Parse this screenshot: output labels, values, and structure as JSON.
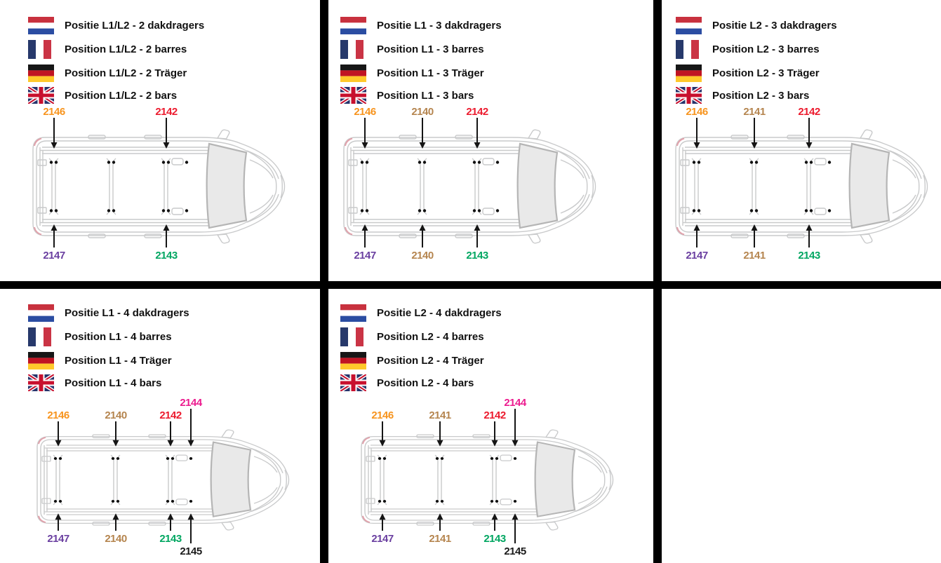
{
  "colors": {
    "orange": "#F7941E",
    "tan": "#B5854F",
    "red": "#EC1B2E",
    "magenta": "#EC1C8F",
    "purple": "#6A3FA0",
    "green": "#00A661",
    "dark": "#1A1A1A",
    "arrow": "#151515",
    "divider": "#000000",
    "van_outline": "#C9CACB",
    "windshield_fill": "#E9E9E9",
    "windshield_stroke": "#B5B5B5",
    "taillight_accent": "#E2A0AA"
  },
  "flags": {
    "nl": {
      "red": "#C8313E",
      "white": "#FFFFFF",
      "blue": "#2B4DA2"
    },
    "fr": {
      "blue": "#27396B",
      "white": "#FFFFFF",
      "red": "#CA3445"
    },
    "de": {
      "black": "#161616",
      "red": "#C01423",
      "gold": "#FFC92B"
    },
    "uk": {
      "blue": "#26336B",
      "white": "#FFFFFF",
      "red": "#C8102E"
    }
  },
  "panels": [
    {
      "id": "l1l2-2-bars",
      "legend": [
        {
          "flag": "nl",
          "text": "Positie L1/L2 - 2 dakdragers"
        },
        {
          "flag": "fr",
          "text": "Position L1/L2 - 2 barres"
        },
        {
          "flag": "de",
          "text": "Position L1/L2 - 2 Träger"
        },
        {
          "flag": "uk",
          "text": "Position L1/L2 - 2 bars"
        }
      ],
      "top_labels": [
        {
          "code": "2146",
          "color": "orange",
          "slot": 1
        },
        {
          "code": "2142",
          "color": "red",
          "slot": 3
        }
      ],
      "bottom_labels": [
        {
          "code": "2147",
          "color": "purple",
          "slot": 1
        },
        {
          "code": "2143",
          "color": "green",
          "slot": 3
        }
      ]
    },
    {
      "id": "l1-3-bars",
      "legend": [
        {
          "flag": "nl",
          "text": "Positie L1 - 3 dakdragers"
        },
        {
          "flag": "fr",
          "text": "Position L1 - 3 barres"
        },
        {
          "flag": "de",
          "text": "Position L1 - 3 Träger"
        },
        {
          "flag": "uk",
          "text": "Position L1 - 3 bars"
        }
      ],
      "top_labels": [
        {
          "code": "2146",
          "color": "orange",
          "slot": 1
        },
        {
          "code": "2140",
          "color": "tan",
          "slot": 2
        },
        {
          "code": "2142",
          "color": "red",
          "slot": 3
        }
      ],
      "bottom_labels": [
        {
          "code": "2147",
          "color": "purple",
          "slot": 1
        },
        {
          "code": "2140",
          "color": "tan",
          "slot": 2
        },
        {
          "code": "2143",
          "color": "green",
          "slot": 3
        }
      ]
    },
    {
      "id": "l2-3-bars",
      "legend": [
        {
          "flag": "nl",
          "text": "Positie L2 - 3 dakdragers"
        },
        {
          "flag": "fr",
          "text": "Position L2 - 3 barres"
        },
        {
          "flag": "de",
          "text": "Position L2 - 3 Träger"
        },
        {
          "flag": "uk",
          "text": "Position L2 - 3 bars"
        }
      ],
      "top_labels": [
        {
          "code": "2146",
          "color": "orange",
          "slot": 1
        },
        {
          "code": "2141",
          "color": "tan",
          "slot": 2
        },
        {
          "code": "2142",
          "color": "red",
          "slot": 3
        }
      ],
      "bottom_labels": [
        {
          "code": "2147",
          "color": "purple",
          "slot": 1
        },
        {
          "code": "2141",
          "color": "tan",
          "slot": 2
        },
        {
          "code": "2143",
          "color": "green",
          "slot": 3
        }
      ]
    },
    {
      "id": "l1-4-bars",
      "legend": [
        {
          "flag": "nl",
          "text": "Positie L1 - 4 dakdragers"
        },
        {
          "flag": "fr",
          "text": "Position L1 - 4 barres"
        },
        {
          "flag": "de",
          "text": "Position L1 - 4 Träger"
        },
        {
          "flag": "uk",
          "text": "Position L1 - 4 bars"
        }
      ],
      "top_labels": [
        {
          "code": "2146",
          "color": "orange",
          "slot": 1
        },
        {
          "code": "2140",
          "color": "tan",
          "slot": 2
        },
        {
          "code": "2142",
          "color": "red",
          "slot": 3
        },
        {
          "code": "2144",
          "color": "magenta",
          "slot": 4
        }
      ],
      "bottom_labels": [
        {
          "code": "2147",
          "color": "purple",
          "slot": 1
        },
        {
          "code": "2140",
          "color": "tan",
          "slot": 2
        },
        {
          "code": "2143",
          "color": "green",
          "slot": 3
        },
        {
          "code": "2145",
          "color": "dark",
          "slot": 4
        }
      ]
    },
    {
      "id": "l2-4-bars",
      "legend": [
        {
          "flag": "nl",
          "text": "Positie L2 - 4 dakdragers"
        },
        {
          "flag": "fr",
          "text": "Position L2 - 4 barres"
        },
        {
          "flag": "de",
          "text": "Position L2 - 4 Träger"
        },
        {
          "flag": "uk",
          "text": "Position L2 - 4 bars"
        }
      ],
      "top_labels": [
        {
          "code": "2146",
          "color": "orange",
          "slot": 1
        },
        {
          "code": "2141",
          "color": "tan",
          "slot": 2
        },
        {
          "code": "2142",
          "color": "red",
          "slot": 3
        },
        {
          "code": "2144",
          "color": "magenta",
          "slot": 4
        }
      ],
      "bottom_labels": [
        {
          "code": "2147",
          "color": "purple",
          "slot": 1
        },
        {
          "code": "2141",
          "color": "tan",
          "slot": 2
        },
        {
          "code": "2143",
          "color": "green",
          "slot": 3
        },
        {
          "code": "2145",
          "color": "dark",
          "slot": 4
        }
      ]
    }
  ]
}
